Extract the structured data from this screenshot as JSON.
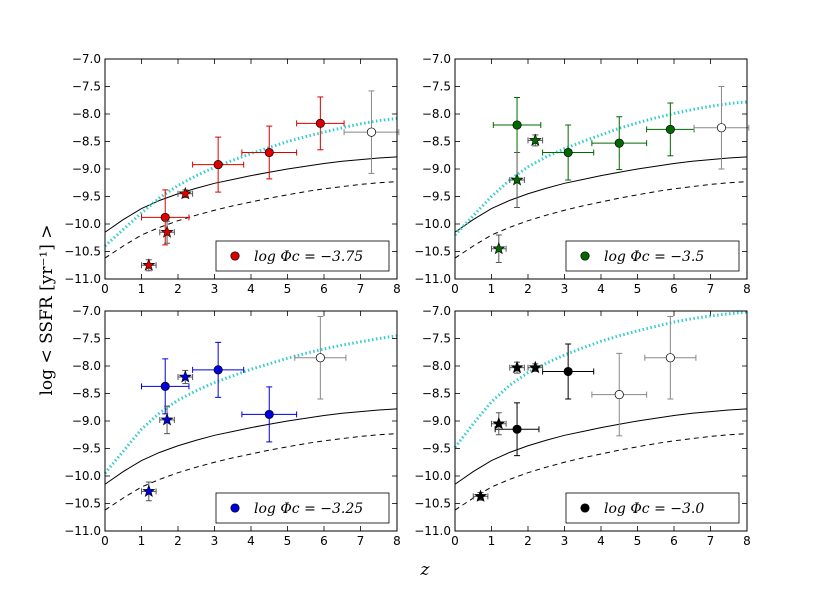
{
  "figure": {
    "ylabel": "log < SSFR [yr⁻¹] >",
    "xlabel": "z"
  },
  "chart_data": [
    {
      "type": "scatter",
      "panel": "top-left",
      "color": "#dd0000",
      "legend_label": "log Φc = −3.75",
      "legend_placement": "bottom-right",
      "xlim": [
        0,
        8
      ],
      "ylim": [
        -11.0,
        -7.0
      ],
      "xticks": [
        "0",
        "1",
        "2",
        "3",
        "4",
        "5",
        "6",
        "7",
        "8"
      ],
      "yticks": [
        "-11.0",
        "-10.5",
        "-10.0",
        "-9.5",
        "-9.0",
        "-8.5",
        "-8.0",
        "-7.5",
        "-7.0"
      ],
      "circles": [
        {
          "x": 1.65,
          "y": -9.88,
          "xerr": 0.65,
          "yerr": 0.5,
          "filled": true
        },
        {
          "x": 3.1,
          "y": -8.92,
          "xerr": 0.7,
          "yerr": 0.5,
          "filled": true
        },
        {
          "x": 4.5,
          "y": -8.7,
          "xerr": 0.75,
          "yerr": 0.48,
          "filled": true
        },
        {
          "x": 5.9,
          "y": -8.17,
          "xerr": 0.65,
          "yerr": 0.48,
          "filled": true
        },
        {
          "x": 7.3,
          "y": -8.33,
          "xerr": 0.75,
          "yerr": 0.75,
          "filled": false
        }
      ],
      "stars": [
        {
          "x": 1.2,
          "y": -10.75,
          "xerr": 0.2,
          "yerr": 0.1
        },
        {
          "x": 1.7,
          "y": -10.15,
          "xerr": 0.2,
          "yerr": 0.2
        },
        {
          "x": 2.2,
          "y": -9.45,
          "xerr": 0.2,
          "yerr": 0.07
        }
      ]
    },
    {
      "type": "scatter",
      "panel": "top-right",
      "color": "#006a00",
      "legend_label": "log Φc = −3.5",
      "legend_placement": "bottom-right",
      "xlim": [
        0,
        8
      ],
      "ylim": [
        -11.0,
        -7.0
      ],
      "xticks": [
        "0",
        "1",
        "2",
        "3",
        "4",
        "5",
        "6",
        "7",
        "8"
      ],
      "yticks": [
        "-11.0",
        "-10.5",
        "-10.0",
        "-9.5",
        "-9.0",
        "-8.5",
        "-8.0",
        "-7.5",
        "-7.0"
      ],
      "circles": [
        {
          "x": 1.7,
          "y": -8.2,
          "xerr": 0.65,
          "yerr": 0.5,
          "filled": true
        },
        {
          "x": 3.1,
          "y": -8.7,
          "xerr": 0.7,
          "yerr": 0.5,
          "filled": true
        },
        {
          "x": 4.5,
          "y": -8.53,
          "xerr": 0.75,
          "yerr": 0.48,
          "filled": true
        },
        {
          "x": 5.9,
          "y": -8.28,
          "xerr": 0.65,
          "yerr": 0.48,
          "filled": true
        },
        {
          "x": 7.3,
          "y": -8.25,
          "xerr": 0.75,
          "yerr": 0.75,
          "filled": false
        }
      ],
      "stars": [
        {
          "x": 1.2,
          "y": -10.45,
          "xerr": 0.2,
          "yerr": 0.25
        },
        {
          "x": 1.7,
          "y": -9.2,
          "xerr": 0.2,
          "yerr": 0.5
        },
        {
          "x": 2.2,
          "y": -8.48,
          "xerr": 0.2,
          "yerr": 0.1
        }
      ]
    },
    {
      "type": "scatter",
      "panel": "bottom-left",
      "color": "#0000dd",
      "legend_label": "log Φc = −3.25",
      "legend_placement": "bottom-right",
      "xlim": [
        0,
        8
      ],
      "ylim": [
        -11.0,
        -7.0
      ],
      "xticks": [
        "0",
        "1",
        "2",
        "3",
        "4",
        "5",
        "6",
        "7",
        "8"
      ],
      "yticks": [
        "-11.0",
        "-10.5",
        "-10.0",
        "-9.5",
        "-9.0",
        "-8.5",
        "-8.0",
        "-7.5",
        "-7.0"
      ],
      "circles": [
        {
          "x": 1.65,
          "y": -8.37,
          "xerr": 0.65,
          "yerr": 0.5,
          "filled": true
        },
        {
          "x": 3.1,
          "y": -8.07,
          "xerr": 0.7,
          "yerr": 0.5,
          "filled": true
        },
        {
          "x": 4.5,
          "y": -8.88,
          "xerr": 0.75,
          "yerr": 0.5,
          "filled": true
        },
        {
          "x": 5.9,
          "y": -7.85,
          "xerr": 0.7,
          "yerr": 0.75,
          "filled": false
        }
      ],
      "stars": [
        {
          "x": 1.2,
          "y": -10.28,
          "xerr": 0.2,
          "yerr": 0.17
        },
        {
          "x": 1.7,
          "y": -8.98,
          "xerr": 0.2,
          "yerr": 0.25
        },
        {
          "x": 2.2,
          "y": -8.2,
          "xerr": 0.2,
          "yerr": 0.12
        }
      ]
    },
    {
      "type": "scatter",
      "panel": "bottom-right",
      "color": "#000000",
      "legend_label": "log Φc = −3.0",
      "legend_placement": "bottom-right",
      "xlim": [
        0,
        8
      ],
      "ylim": [
        -11.0,
        -7.0
      ],
      "xticks": [
        "0",
        "1",
        "2",
        "3",
        "4",
        "5",
        "6",
        "7",
        "8"
      ],
      "yticks": [
        "-11.0",
        "-10.5",
        "-10.0",
        "-9.5",
        "-9.0",
        "-8.5",
        "-8.0",
        "-7.5",
        "-7.0"
      ],
      "circles": [
        {
          "x": 1.7,
          "y": -9.15,
          "xerr": 0.6,
          "yerr": 0.48,
          "filled": true
        },
        {
          "x": 3.1,
          "y": -8.1,
          "xerr": 0.7,
          "yerr": 0.5,
          "filled": true
        },
        {
          "x": 4.5,
          "y": -8.52,
          "xerr": 0.75,
          "yerr": 0.75,
          "filled": false
        },
        {
          "x": 5.9,
          "y": -7.85,
          "xerr": 0.7,
          "yerr": 0.75,
          "filled": false
        }
      ],
      "stars": [
        {
          "x": 0.7,
          "y": -10.37,
          "xerr": 0.2,
          "yerr": 0.07
        },
        {
          "x": 1.2,
          "y": -9.05,
          "xerr": 0.2,
          "yerr": 0.2
        },
        {
          "x": 1.7,
          "y": -8.03,
          "xerr": 0.2,
          "yerr": 0.1
        },
        {
          "x": 2.2,
          "y": -8.03,
          "xerr": 0.2,
          "yerr": 0.07
        }
      ]
    }
  ],
  "model_curves": {
    "solid": {
      "color": "#000000",
      "style": "solid",
      "points": [
        [
          0,
          -10.15
        ],
        [
          0.5,
          -9.92
        ],
        [
          1,
          -9.72
        ],
        [
          1.5,
          -9.57
        ],
        [
          2,
          -9.45
        ],
        [
          2.5,
          -9.35
        ],
        [
          3,
          -9.26
        ],
        [
          3.5,
          -9.19
        ],
        [
          4,
          -9.12
        ],
        [
          4.5,
          -9.06
        ],
        [
          5,
          -9.0
        ],
        [
          5.5,
          -8.95
        ],
        [
          6,
          -8.9
        ],
        [
          6.5,
          -8.86
        ],
        [
          7,
          -8.83
        ],
        [
          7.5,
          -8.8
        ],
        [
          8,
          -8.78
        ]
      ]
    },
    "dashed": {
      "color": "#000000",
      "style": "dashed",
      "points": [
        [
          0,
          -10.62
        ],
        [
          0.5,
          -10.4
        ],
        [
          1,
          -10.2
        ],
        [
          1.5,
          -10.06
        ],
        [
          2,
          -9.94
        ],
        [
          2.5,
          -9.84
        ],
        [
          3,
          -9.75
        ],
        [
          3.5,
          -9.67
        ],
        [
          4,
          -9.6
        ],
        [
          4.5,
          -9.53
        ],
        [
          5,
          -9.47
        ],
        [
          5.5,
          -9.41
        ],
        [
          6,
          -9.36
        ],
        [
          6.5,
          -9.32
        ],
        [
          7,
          -9.28
        ],
        [
          7.5,
          -9.25
        ],
        [
          8,
          -9.23
        ]
      ]
    },
    "dotted": {
      "color": "#33cccc",
      "style": "dotted",
      "panels": [
        [
          [
            0,
            -10.4
          ],
          [
            0.5,
            -10.1
          ],
          [
            1,
            -9.8
          ],
          [
            1.5,
            -9.52
          ],
          [
            2,
            -9.3
          ],
          [
            2.5,
            -9.12
          ],
          [
            3,
            -8.97
          ],
          [
            3.5,
            -8.84
          ],
          [
            4,
            -8.72
          ],
          [
            4.5,
            -8.61
          ],
          [
            5,
            -8.5
          ],
          [
            5.5,
            -8.41
          ],
          [
            6,
            -8.33
          ],
          [
            6.5,
            -8.25
          ],
          [
            7,
            -8.18
          ],
          [
            7.5,
            -8.12
          ],
          [
            8,
            -8.08
          ]
        ],
        [
          [
            0,
            -10.2
          ],
          [
            0.5,
            -9.85
          ],
          [
            1,
            -9.5
          ],
          [
            1.5,
            -9.2
          ],
          [
            2,
            -8.96
          ],
          [
            2.5,
            -8.78
          ],
          [
            3,
            -8.63
          ],
          [
            3.5,
            -8.5
          ],
          [
            4,
            -8.38
          ],
          [
            4.5,
            -8.26
          ],
          [
            5,
            -8.16
          ],
          [
            5.5,
            -8.07
          ],
          [
            6,
            -7.99
          ],
          [
            6.5,
            -7.92
          ],
          [
            7,
            -7.86
          ],
          [
            7.5,
            -7.81
          ],
          [
            8,
            -7.78
          ]
        ],
        [
          [
            0,
            -9.95
          ],
          [
            0.5,
            -9.55
          ],
          [
            1,
            -9.15
          ],
          [
            1.5,
            -8.85
          ],
          [
            2,
            -8.62
          ],
          [
            2.5,
            -8.45
          ],
          [
            3,
            -8.3
          ],
          [
            3.5,
            -8.18
          ],
          [
            4,
            -8.06
          ],
          [
            4.5,
            -7.96
          ],
          [
            5,
            -7.86
          ],
          [
            5.5,
            -7.77
          ],
          [
            6,
            -7.69
          ],
          [
            6.5,
            -7.62
          ],
          [
            7,
            -7.56
          ],
          [
            7.5,
            -7.5
          ],
          [
            8,
            -7.45
          ]
        ],
        [
          [
            0,
            -9.48
          ],
          [
            0.5,
            -9.05
          ],
          [
            1,
            -8.65
          ],
          [
            1.5,
            -8.35
          ],
          [
            2,
            -8.12
          ],
          [
            2.5,
            -7.95
          ],
          [
            3,
            -7.8
          ],
          [
            3.5,
            -7.67
          ],
          [
            4,
            -7.55
          ],
          [
            4.5,
            -7.45
          ],
          [
            5,
            -7.36
          ],
          [
            5.5,
            -7.28
          ],
          [
            6,
            -7.2
          ],
          [
            6.5,
            -7.14
          ],
          [
            7,
            -7.09
          ],
          [
            7.5,
            -7.05
          ],
          [
            8,
            -7.02
          ]
        ]
      ]
    }
  }
}
